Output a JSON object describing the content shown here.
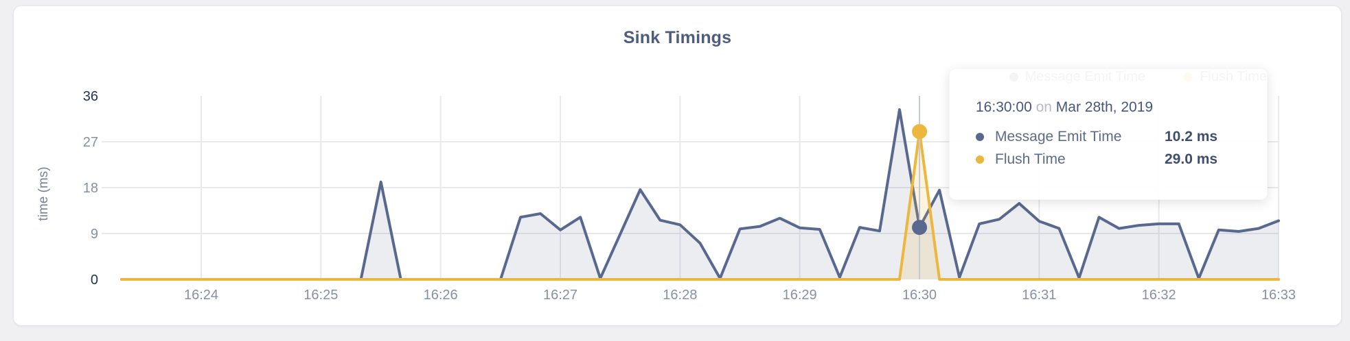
{
  "card": {
    "panel": "chart-panel"
  },
  "chart_data": {
    "type": "area",
    "title": "Sink Timings",
    "ylabel": "time (ms)",
    "xlabel": "",
    "ylim": [
      0,
      36
    ],
    "y_tick_labels": [
      "36",
      "27",
      "18",
      "9",
      "0"
    ],
    "y_tick_values": [
      36,
      27,
      18,
      9,
      0
    ],
    "x_tick_labels": [
      "16:24",
      "16:25",
      "16:26",
      "16:27",
      "16:28",
      "16:29",
      "16:30",
      "16:31",
      "16:32",
      "16:33"
    ],
    "x_start_time": "16:23:20",
    "x_step_seconds": 10,
    "grid": true,
    "legend_position": "top-right",
    "series": [
      {
        "name": "Message Emit Time",
        "color": "#58688e",
        "fill": "rgba(88,104,142,0.12)",
        "values": [
          0,
          0,
          0,
          0,
          0,
          0,
          0,
          0,
          0,
          0,
          0,
          0,
          0,
          19.1,
          0,
          0,
          0,
          0,
          0,
          0,
          12.2,
          12.9,
          9.7,
          12.2,
          0.2,
          8.9,
          17.6,
          11.6,
          10.7,
          7.1,
          0.2,
          9.9,
          10.4,
          12.0,
          10.1,
          9.8,
          0.4,
          10.2,
          9.5,
          33.3,
          10.2,
          17.5,
          0.4,
          10.9,
          11.8,
          14.9,
          11.4,
          10.0,
          0.3,
          12.2,
          10.0,
          10.6,
          10.9,
          10.9,
          0.2,
          9.7,
          9.4,
          10.0,
          11.5
        ]
      },
      {
        "name": "Flush Time",
        "color": "#ecb73e",
        "fill": "rgba(236,183,62,0.16)",
        "values": [
          0,
          0,
          0,
          0,
          0,
          0,
          0,
          0,
          0,
          0,
          0,
          0,
          0,
          0,
          0,
          0,
          0,
          0,
          0,
          0,
          0,
          0,
          0,
          0,
          0,
          0,
          0,
          0,
          0,
          0,
          0,
          0,
          0,
          0,
          0,
          0,
          0,
          0,
          0,
          0,
          29.0,
          0,
          0,
          0,
          0,
          0,
          0,
          0,
          0,
          0,
          0,
          0,
          0,
          0,
          0,
          0,
          0,
          0,
          0
        ]
      }
    ]
  },
  "tooltip": {
    "time": "16:30:00",
    "connector": "on",
    "date": "Mar 28th, 2019",
    "highlight_index": 40,
    "rows": [
      {
        "name": "Message Emit Time",
        "value": "10.2 ms"
      },
      {
        "name": "Flush Time",
        "value": "29.0 ms"
      }
    ]
  },
  "theme": {
    "gridline_color": "#e8e9ed",
    "crosshair_color": "#c6c9cf",
    "y_tick_color_edge": "#25335b",
    "y_tick_color_mid": "#8590a6",
    "x_tick_color": "#8590a6"
  }
}
